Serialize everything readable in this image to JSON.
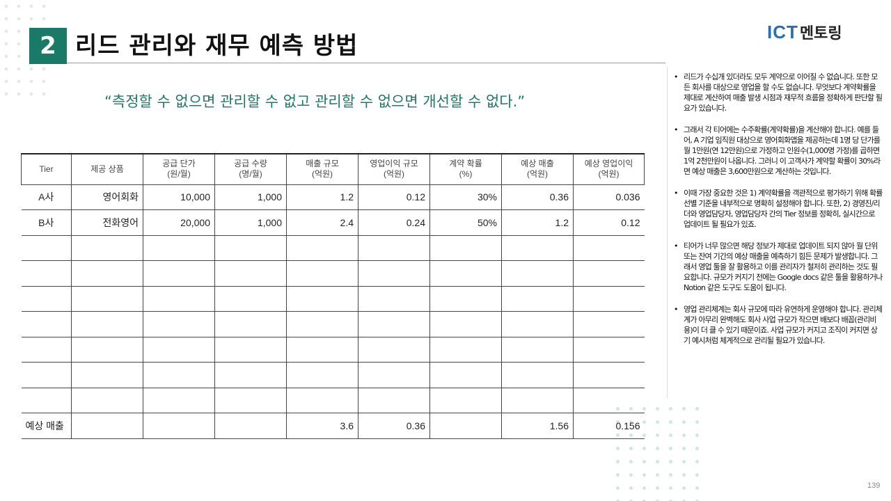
{
  "header": {
    "number": "2",
    "title": "리드 관리와 재무 예측 방법"
  },
  "logo": {
    "ict": "ICT",
    "rest": "멘토링"
  },
  "quote": "“측정할 수 없으면 관리할 수 없고 관리할 수 없으면 개선할 수 없다.”",
  "table": {
    "headers": [
      "Tier",
      "제공 상품",
      "공급 단가\n(원/월)",
      "공급 수량\n(명/월)",
      "매출 규모\n(억원)",
      "영업이익 규모\n(억원)",
      "계약 확률\n(%)",
      "예상 매출\n(억원)",
      "예상 영업이익\n(억원)"
    ],
    "rows": [
      [
        "A사",
        "영어회화",
        "10,000",
        "1,000",
        "1.2",
        "0.12",
        "30%",
        "0.36",
        "0.036"
      ],
      [
        "B사",
        "전화영어",
        "20,000",
        "1,000",
        "2.4",
        "0.24",
        "50%",
        "1.2",
        "0.12"
      ]
    ],
    "total": {
      "label": "예상 매출",
      "sales": "3.6",
      "profit": "0.36",
      "expected_sales": "1.56",
      "expected_profit": "0.156"
    }
  },
  "bullets": [
    "리드가 수십개 있더라도 모두 계약으로 이어질 수 없습니다. 또한 모든 회사를 대상으로 영업을 할 수도 없습니다. 무엇보다 계약확률을 제대로 계산하여 매출 발생 시점과 재무적 흐름을 정확하게 판단할 필요가 있습니다.",
    "그래서 각 티어에는 수주확률(계약확률)을 계산해야 합니다. 예를 들어, A 기업 임직원 대상으로 영어회화앱을 제공하는데 1명 당 단가를 월 1만원(연 12만원)으로 가정하고 인원수(1,000명 가정)를 곱하면 1억 2천만원이 나옵니다. 그러니 이 고객사가 계약할 확률이 30%라면 예상 매출은 3,600만원으로 계산하는 것입니다.",
    "이때 가장 중요한 것은 1) 계약확률을 객관적으로 평가하기 위해 확률 선별 기준을 내부적으로 명확히 설정해야 합니다. 또한, 2) 경영진/리더와 영업담당자, 영업담당자 간의 Tier 정보를 정확히, 실시간으로 업데이트 될 필요가 있죠.",
    "티어가 너무 많으면 해당 정보가 제대로 업데이트 되지 않아 월 단위 또는 잔여 기간의 예상 매출을 예측하기 힘든 문제가 발생합니다. 그래서 영업 툴을 잘 활용하고 이를 관리자가 철저히 관리하는 것도 필요합니다. 규모가 커지기 전에는 Google docs 같은 툴을 활용하거나 Notion 같은 도구도 도움이 됩니다.",
    "영업 관리체계는 회사 규모에 따라 유연하게 운영해야 합니다. 관리체계가 아무리 완벽해도 회사 사업 규모가 작으면 배보다 배꼽(관리비용)이 더 클 수 있기 때문이죠. 사업 규모가 커지고 조직이 커지면 상기 예시처럼 체계적으로 관리될 필요가 있습니다."
  ],
  "page_number": "139",
  "colors": {
    "accent": "#197a68",
    "quote": "#1f7a63",
    "logo_blue": "#2a6fb3"
  }
}
